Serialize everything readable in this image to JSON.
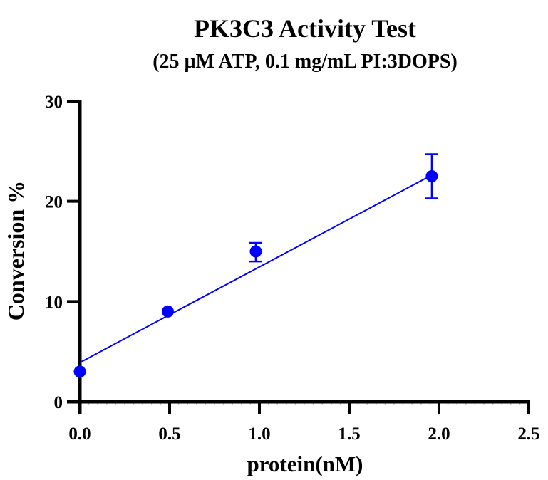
{
  "chart_data": {
    "type": "scatter",
    "title": "PK3C3 Activity Test",
    "subtitle": "(25 µM ATP, 0.1 mg/mL PI:3DOPS)",
    "xlabel": "protein(nM)",
    "ylabel": "Conversion %",
    "xlim": [
      0,
      2.5
    ],
    "ylim": [
      0,
      30
    ],
    "x_ticks": [
      0,
      0.5,
      1.0,
      1.5,
      2.0,
      2.5
    ],
    "x_tick_labels": [
      "0.0",
      "0.5",
      "1.0",
      "1.5",
      "2.0",
      "2.5"
    ],
    "y_ticks": [
      0,
      10,
      20,
      30
    ],
    "y_tick_labels": [
      "0",
      "10",
      "20",
      "30"
    ],
    "x_minor_ticks_per_major": 9,
    "grid": false,
    "series": [
      {
        "name": "PK3C3",
        "color": "#0000ff",
        "marker": "circle",
        "points": [
          {
            "x": 0.0,
            "y": 3.0,
            "err_low": 3.0,
            "err_high": 3.0
          },
          {
            "x": 0.49,
            "y": 9.0,
            "err_low": 9.0,
            "err_high": 9.0
          },
          {
            "x": 0.98,
            "y": 15.0,
            "err_low": 14.0,
            "err_high": 15.85
          },
          {
            "x": 1.96,
            "y": 22.5,
            "err_low": 20.3,
            "err_high": 24.7
          }
        ]
      }
    ],
    "fit_line": {
      "type": "linear",
      "color": "#0000ff",
      "x_range": [
        0,
        1.96
      ],
      "intercept": 3.9,
      "slope": 9.55
    }
  }
}
